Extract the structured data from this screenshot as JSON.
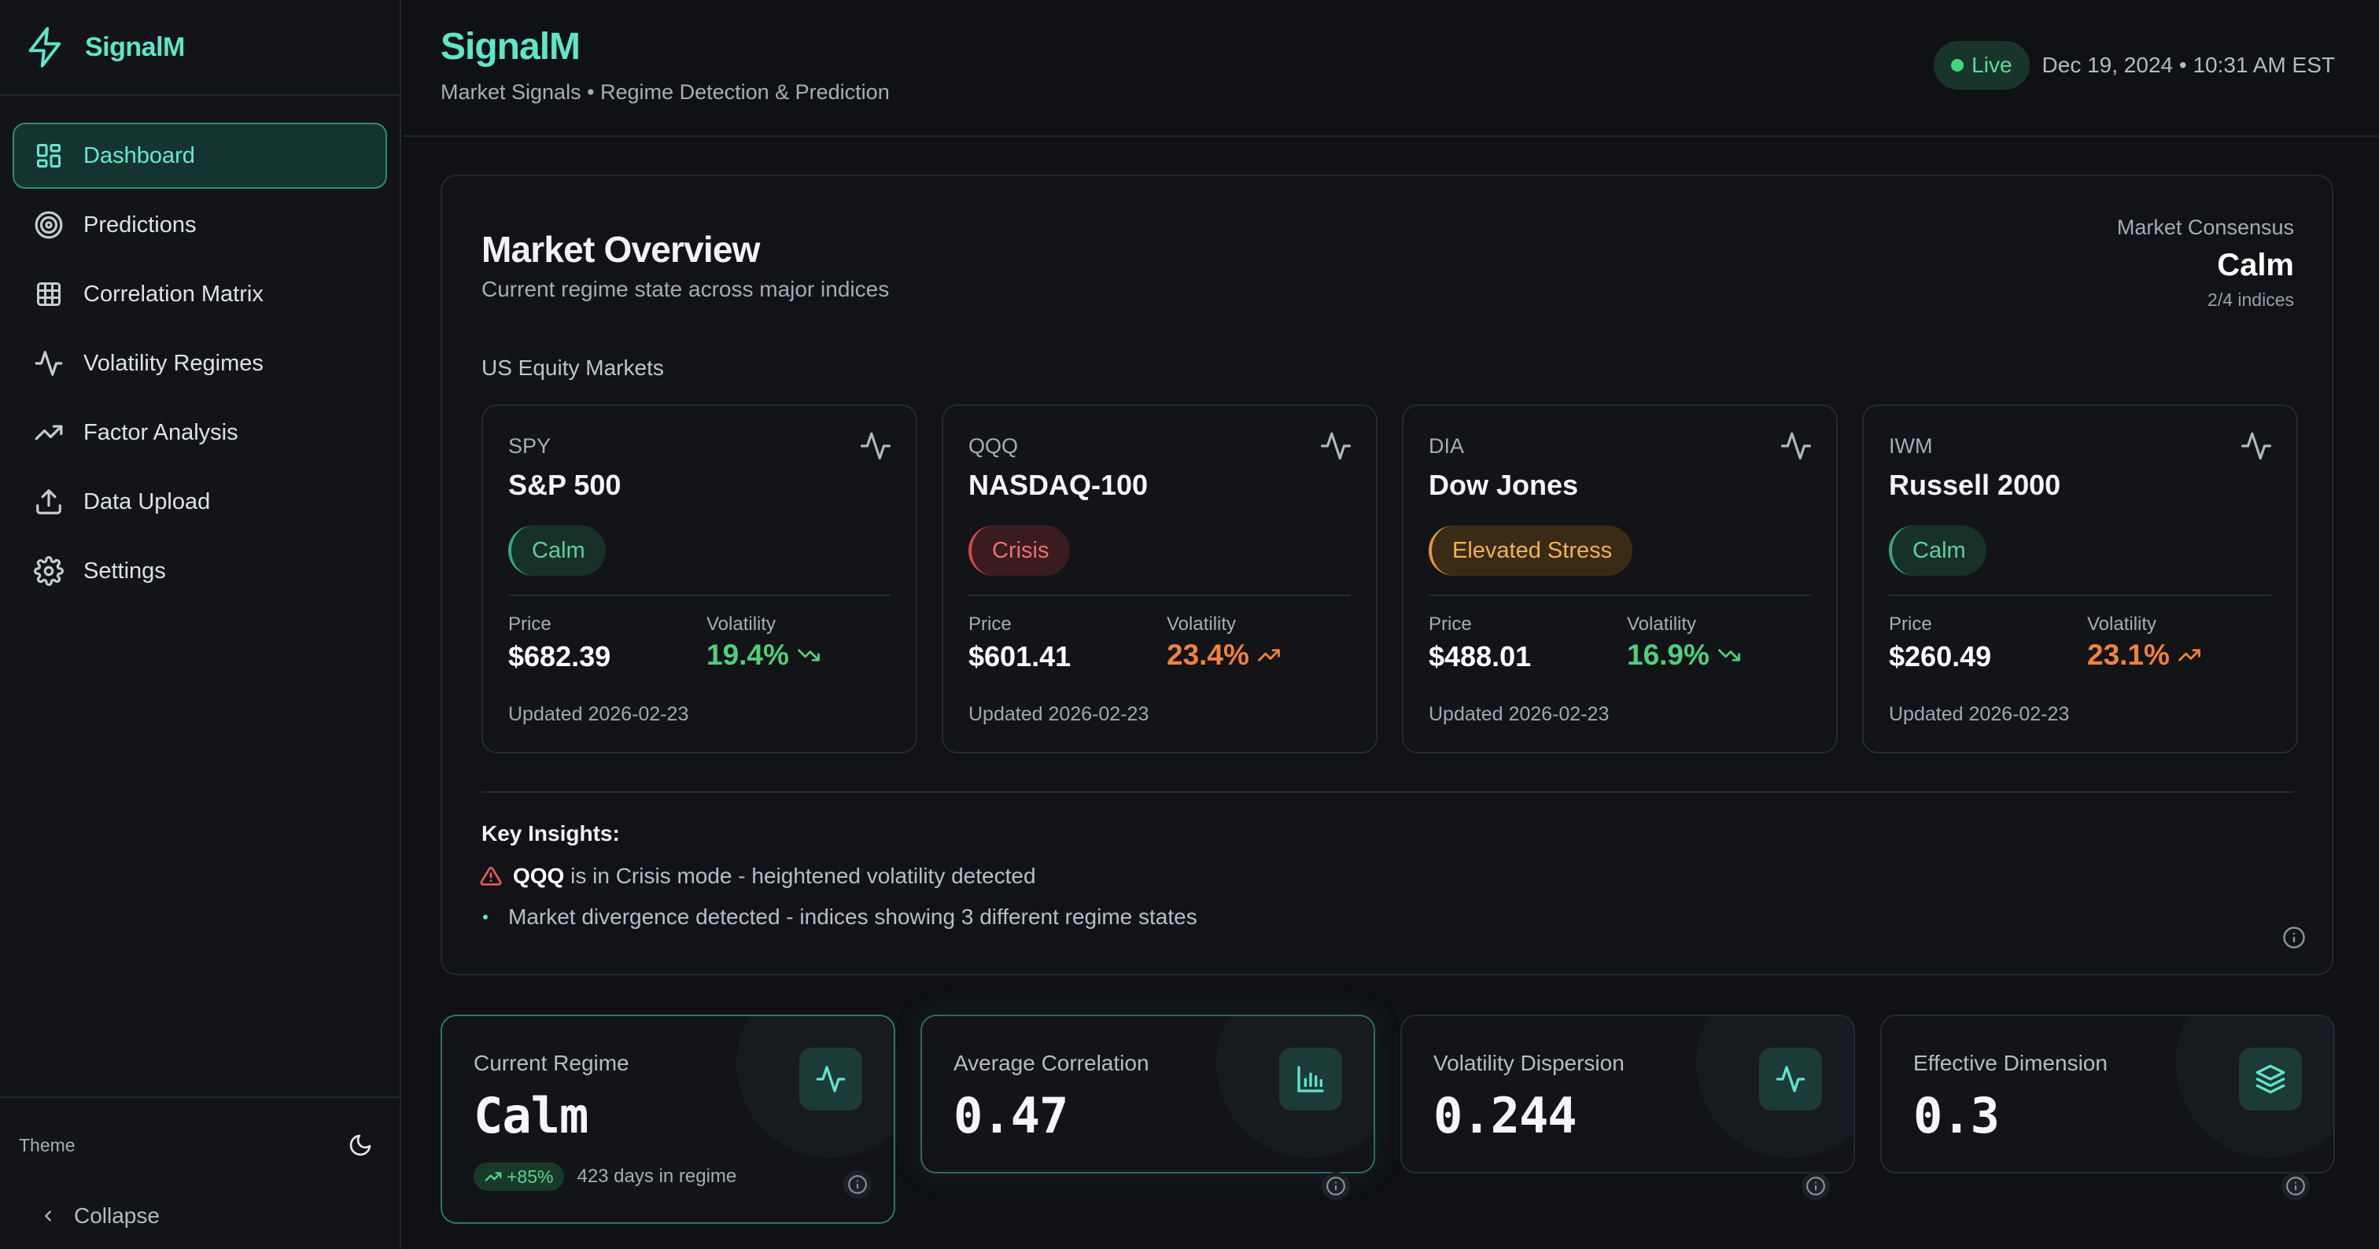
{
  "sidebar": {
    "brand": "SignalM",
    "items": [
      {
        "label": "Dashboard",
        "icon": "dashboard-grid-icon"
      },
      {
        "label": "Predictions",
        "icon": "target-icon"
      },
      {
        "label": "Correlation Matrix",
        "icon": "grid-table-icon"
      },
      {
        "label": "Volatility Regimes",
        "icon": "pulse-icon"
      },
      {
        "label": "Factor Analysis",
        "icon": "trending-up-icon"
      },
      {
        "label": "Data Upload",
        "icon": "upload-icon"
      },
      {
        "label": "Settings",
        "icon": "gear-icon"
      }
    ],
    "theme_label": "Theme",
    "collapse_label": "Collapse"
  },
  "header": {
    "title": "SignalM",
    "subtitle": "Market Signals • Regime Detection & Prediction",
    "live_label": "Live",
    "datetime": "Dec 19, 2024 • 10:31 AM EST"
  },
  "overview": {
    "title": "Market Overview",
    "subtitle": "Current regime state across major indices",
    "consensus_label": "Market Consensus",
    "consensus_value": "Calm",
    "consensus_count": "2/4 indices",
    "group_label": "US Equity Markets",
    "price_label": "Price",
    "volatility_label": "Volatility",
    "indices": [
      {
        "ticker": "SPY",
        "name": "S&P 500",
        "regime": "Calm",
        "price": "$682.39",
        "volatility": "19.4%",
        "trend": "down",
        "updated": "Updated 2026-02-23"
      },
      {
        "ticker": "QQQ",
        "name": "NASDAQ-100",
        "regime": "Crisis",
        "price": "$601.41",
        "volatility": "23.4%",
        "trend": "up",
        "updated": "Updated 2026-02-23"
      },
      {
        "ticker": "DIA",
        "name": "Dow Jones",
        "regime": "Elevated Stress",
        "price": "$488.01",
        "volatility": "16.9%",
        "trend": "down",
        "updated": "Updated 2026-02-23"
      },
      {
        "ticker": "IWM",
        "name": "Russell 2000",
        "regime": "Calm",
        "price": "$260.49",
        "volatility": "23.1%",
        "trend": "up",
        "updated": "Updated 2026-02-23"
      }
    ],
    "insights_title": "Key Insights:",
    "insights": [
      {
        "bold": "QQQ",
        "text": " is in Crisis mode - heightened volatility detected"
      },
      {
        "text": "Market divergence detected - indices showing 3 different regime states"
      }
    ]
  },
  "stats": [
    {
      "label": "Current Regime",
      "value": "Calm",
      "icon": "pulse-icon",
      "trend": "+85%",
      "days": "423 days in regime"
    },
    {
      "label": "Average Correlation",
      "value": "0.47",
      "icon": "bar-chart-icon"
    },
    {
      "label": "Volatility Dispersion",
      "value": "0.244",
      "icon": "pulse-icon"
    },
    {
      "label": "Effective Dimension",
      "value": "0.3",
      "icon": "layers-icon"
    }
  ],
  "colors": {
    "accent": "#5ee6c5",
    "calm": "#5fcf9f",
    "crisis": "#ef6c73",
    "stress": "#f2b150",
    "vol_down": "#4fcf7c",
    "vol_up": "#f2813a"
  }
}
